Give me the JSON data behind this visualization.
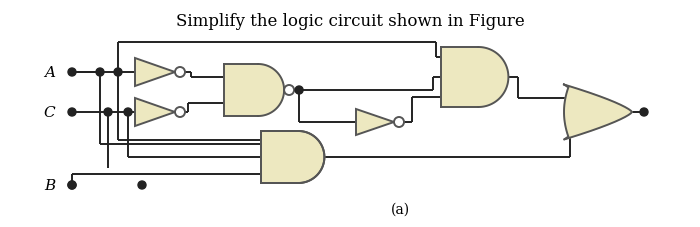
{
  "title": "Simplify the logic circuit shown in Figure",
  "title_fontsize": 12,
  "gate_fill": "#EDE8C0",
  "gate_edge": "#555555",
  "wire_color": "#222222",
  "bg_color": "#FFFFFF",
  "input_labels": [
    "A",
    "C",
    "B"
  ],
  "caption": "(a)"
}
